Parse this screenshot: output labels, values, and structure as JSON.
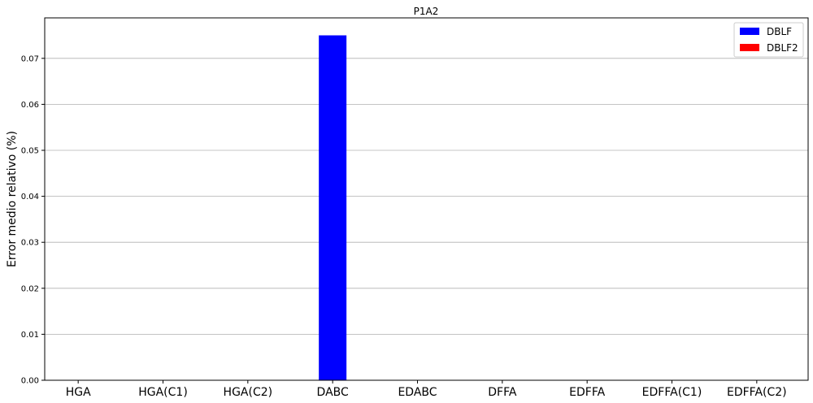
{
  "chart_data": {
    "type": "bar",
    "title": "P1A2",
    "xlabel": "",
    "ylabel": "Error medio relativo (%)",
    "categories": [
      "HGA",
      "HGA(C1)",
      "HGA(C2)",
      "DABC",
      "EDABC",
      "DFFA",
      "EDFFA",
      "EDFFA(C1)",
      "EDFFA(C2)"
    ],
    "series": [
      {
        "name": "DBLF",
        "color": "#0000ff",
        "values": [
          0,
          0,
          0,
          0.075,
          0,
          0,
          0,
          0,
          0
        ]
      },
      {
        "name": "DBLF2",
        "color": "#ff0000",
        "values": [
          0,
          0,
          0,
          0,
          0,
          0,
          0,
          0,
          0
        ]
      }
    ],
    "ylim": [
      0,
      0.0788
    ],
    "yticks": [
      "0.00",
      "0.01",
      "0.02",
      "0.03",
      "0.04",
      "0.05",
      "0.06",
      "0.07"
    ],
    "ytick_values": [
      0,
      0.01,
      0.02,
      0.03,
      0.04,
      0.05,
      0.06,
      0.07
    ],
    "grid": "y",
    "legend_position": "top-right"
  }
}
